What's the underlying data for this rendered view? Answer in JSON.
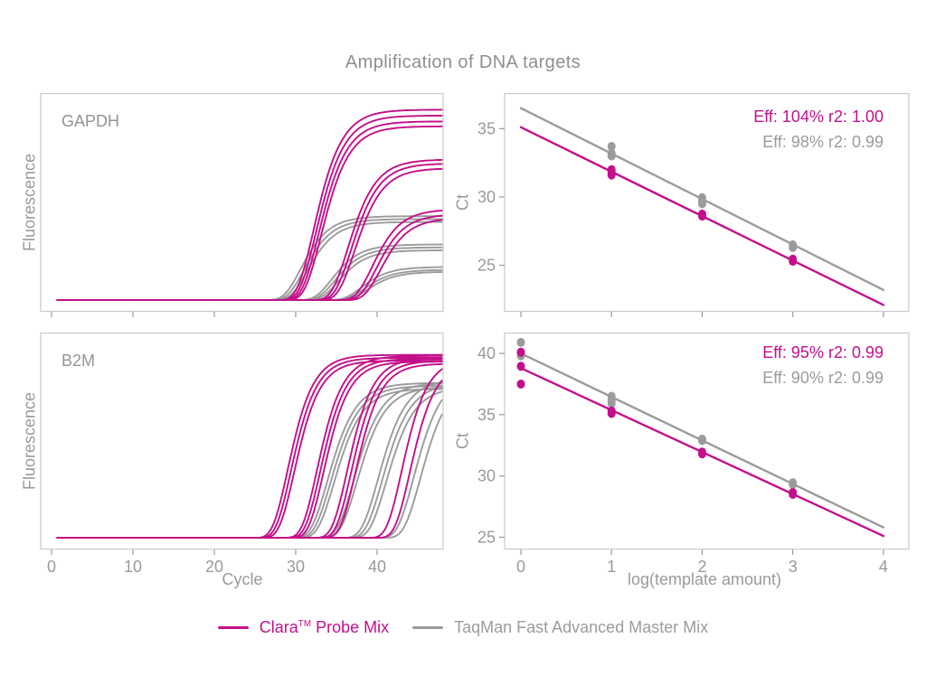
{
  "title": "Amplification of DNA targets",
  "colors": {
    "clara": "#C40F8B",
    "taqman": "#9B9B9B",
    "panel_border": "#CCCCCC",
    "text_gray": "#9A9A9A"
  },
  "legend": {
    "clara_brand": "Clara",
    "clara_sup": "TM",
    "clara_rest": " Probe Mix",
    "taqman_label": "TaqMan Fast Advanced Master Mix"
  },
  "chart_data": [
    {
      "id": "amp_gapdh",
      "type": "line",
      "subtype": "qpcr-amplification",
      "panel_label": "GAPDH",
      "ylabel": "Fluorescence",
      "xlabel": "",
      "xlim": [
        -1.33,
        48.11
      ],
      "ylim": [
        -0.06,
        1.06
      ],
      "x_ticks": [
        0,
        10,
        20,
        30,
        40
      ],
      "x_tick_labels_visible": false,
      "y_ticks": [],
      "series": [
        {
          "name": "TaqMan Fast Advanced Master Mix",
          "color": "taqman",
          "k": 0.5,
          "curves_note": "each curve = [midpoint_cycle, plateau_fraction]",
          "curves": [
            [
              30.6,
              0.43
            ],
            [
              31.0,
              0.415
            ],
            [
              31.4,
              0.4
            ],
            [
              34.4,
              0.285
            ],
            [
              34.8,
              0.27
            ],
            [
              35.2,
              0.255
            ],
            [
              38.0,
              0.17
            ],
            [
              38.4,
              0.155
            ],
            [
              38.8,
              0.145
            ]
          ]
        },
        {
          "name": "Clara Probe Mix",
          "color": "clara",
          "k": 0.5,
          "curves": [
            [
              32.2,
              0.975
            ],
            [
              32.5,
              0.945
            ],
            [
              32.8,
              0.915
            ],
            [
              33.1,
              0.89
            ],
            [
              36.4,
              0.72
            ],
            [
              36.8,
              0.7
            ],
            [
              37.2,
              0.675
            ],
            [
              39.4,
              0.465
            ],
            [
              39.9,
              0.44
            ],
            [
              40.4,
              0.42
            ]
          ]
        }
      ]
    },
    {
      "id": "std_gapdh",
      "type": "scatter",
      "subtype": "standard-curve",
      "ylabel": "Ct",
      "xlabel": "",
      "xlim": [
        -0.18,
        4.28
      ],
      "ylim": [
        21.6,
        37.6
      ],
      "x_ticks": [
        0,
        1,
        2,
        3,
        4
      ],
      "x_tick_labels_visible": false,
      "y_ticks": [
        25,
        30,
        35
      ],
      "eff_labels": [
        {
          "text": "Eff: 104% r2: 1.00",
          "color": "clara"
        },
        {
          "text": "Eff: 98% r2: 0.99",
          "color": "taqman"
        }
      ],
      "series": [
        {
          "name": "TaqMan Fast Advanced Master Mix",
          "color": "taqman",
          "fit_line": {
            "x1": 0,
            "y1": 36.5,
            "x2": 4,
            "y2": 23.2
          },
          "points": [
            [
              1,
              33.7
            ],
            [
              1,
              33.2
            ],
            [
              1,
              33.0
            ],
            [
              2,
              29.95
            ],
            [
              2,
              29.7
            ],
            [
              2,
              29.5
            ],
            [
              3,
              26.5
            ],
            [
              3,
              26.3
            ]
          ]
        },
        {
          "name": "Clara Probe Mix",
          "color": "clara",
          "fit_line": {
            "x1": 0,
            "y1": 35.1,
            "x2": 4,
            "y2": 22.1
          },
          "points": [
            [
              1,
              32.0
            ],
            [
              1,
              31.8
            ],
            [
              1,
              31.6
            ],
            [
              2,
              28.75
            ],
            [
              2,
              28.6
            ],
            [
              3,
              25.45
            ],
            [
              3,
              25.3
            ]
          ]
        }
      ]
    },
    {
      "id": "amp_b2m",
      "type": "line",
      "subtype": "qpcr-amplification",
      "panel_label": "B2M",
      "ylabel": "Fluorescence",
      "xlabel": "Cycle",
      "xlim": [
        -1.33,
        48.11
      ],
      "ylim": [
        -0.06,
        1.06
      ],
      "x_ticks": [
        0,
        10,
        20,
        30,
        40
      ],
      "x_tick_labels_visible": true,
      "y_ticks": [],
      "series": [
        {
          "name": "TaqMan Fast Advanced Master Mix",
          "color": "taqman",
          "k": 0.5,
          "curves": [
            [
              33.9,
              0.8
            ],
            [
              34.3,
              0.785
            ],
            [
              34.7,
              0.77
            ],
            [
              37.1,
              0.8
            ],
            [
              37.5,
              0.78
            ],
            [
              40.1,
              0.82
            ],
            [
              40.6,
              0.8
            ],
            [
              41.1,
              0.78
            ],
            [
              44.5,
              0.85
            ],
            [
              45.3,
              0.83
            ]
          ]
        },
        {
          "name": "Clara Probe Mix",
          "color": "clara",
          "k": 0.55,
          "curves": [
            [
              29.0,
              0.945
            ],
            [
              29.4,
              0.93
            ],
            [
              29.8,
              0.915
            ],
            [
              32.6,
              0.94
            ],
            [
              33.0,
              0.925
            ],
            [
              33.4,
              0.91
            ],
            [
              36.3,
              0.93
            ],
            [
              36.8,
              0.915
            ],
            [
              37.3,
              0.9
            ],
            [
              43.0,
              0.93
            ],
            [
              44.0,
              0.91
            ]
          ]
        }
      ]
    },
    {
      "id": "std_b2m",
      "type": "scatter",
      "subtype": "standard-curve",
      "ylabel": "Ct",
      "xlabel": "log(template amount)",
      "xlim": [
        -0.18,
        4.28
      ],
      "ylim": [
        24.0,
        41.7
      ],
      "x_ticks": [
        0,
        1,
        2,
        3,
        4
      ],
      "x_tick_labels_visible": true,
      "y_ticks": [
        25,
        30,
        35,
        40
      ],
      "eff_labels": [
        {
          "text": "Eff: 95% r2: 0.99",
          "color": "clara"
        },
        {
          "text": "Eff: 90% r2: 0.99",
          "color": "taqman"
        }
      ],
      "series": [
        {
          "name": "TaqMan Fast Advanced Master Mix",
          "color": "taqman",
          "fit_line": {
            "x1": 0,
            "y1": 40.0,
            "x2": 4,
            "y2": 25.8
          },
          "points": [
            [
              0,
              40.9
            ],
            [
              0,
              40.1
            ],
            [
              0,
              39.8
            ],
            [
              1,
              36.5
            ],
            [
              1,
              36.15
            ],
            [
              1,
              35.9
            ],
            [
              2,
              33.0
            ],
            [
              2,
              32.9
            ],
            [
              3,
              29.45
            ],
            [
              3,
              29.3
            ]
          ]
        },
        {
          "name": "Clara Probe Mix",
          "color": "clara",
          "fit_line": {
            "x1": 0,
            "y1": 38.8,
            "x2": 4,
            "y2": 25.1
          },
          "points": [
            [
              0,
              40.1
            ],
            [
              0,
              38.95
            ],
            [
              0,
              37.5
            ],
            [
              1,
              35.3
            ],
            [
              1,
              35.1
            ],
            [
              2,
              31.95
            ],
            [
              2,
              31.8
            ],
            [
              3,
              28.65
            ],
            [
              3,
              28.5
            ]
          ]
        }
      ]
    }
  ]
}
